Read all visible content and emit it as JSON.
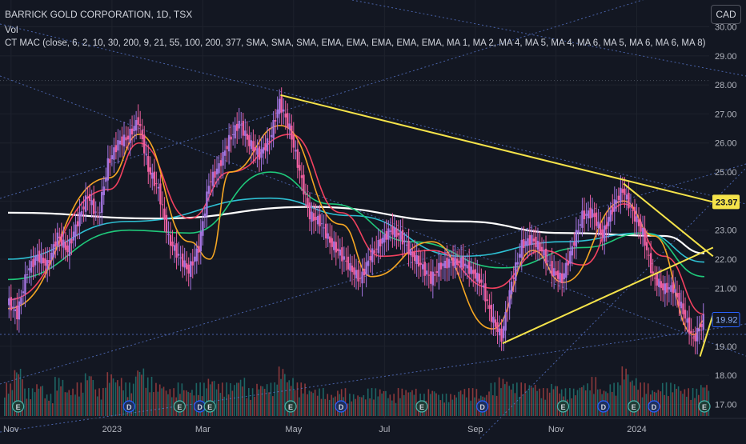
{
  "header": {
    "symbol_line": "BARRICK GOLD CORPORATION, 1D, TSX",
    "vol_label": "Vol",
    "indicator_line": "CT MAC (close, 6, 2, 10, 30, 200, 9, 21, 55, 100, 200, 377, SMA, SMA, SMA, EMA, EMA, EMA, EMA, EMA, MA 1, MA 2, MA 4, MA 5, MA 4, MA 6, MA 5, MA 6, MA 6, MA 8)",
    "currency_button": "CAD"
  },
  "colors": {
    "background": "#131722",
    "grid": "#1e222d",
    "up": "#a374e0",
    "down": "#ef5fa0",
    "vol_up": "#26a69a",
    "vol_down": "#ef5350",
    "trendline": "#f5e34a",
    "dotted": "#5b7bd5",
    "ma_white": "#ffffff",
    "ma_cyan": "#2ec0d3",
    "ma_green": "#1fc87a",
    "ma_red": "#f2415f",
    "ma_orange": "#f5a623"
  },
  "chart_data": {
    "type": "candlestick",
    "symbol": "BARRICK GOLD CORPORATION",
    "interval": "1D",
    "exchange": "TSX",
    "currency": "CAD",
    "y_range": [
      16.6,
      30.4
    ],
    "y_ticks": [
      "30.00",
      "29.00",
      "28.00",
      "27.00",
      "26.00",
      "25.00",
      "24.00",
      "23.00",
      "22.00",
      "21.00",
      "20.00",
      "19.00",
      "18.00",
      "17.00"
    ],
    "x_ticks": [
      "Nov",
      "2023",
      "Mar",
      "May",
      "Jul",
      "Sep",
      "Nov",
      "2024"
    ],
    "price_labels": [
      {
        "text": "23.97",
        "value": 23.97,
        "style": "trendline"
      },
      {
        "text": "19.92",
        "value": 19.92,
        "style": "last"
      }
    ],
    "close_series": [
      {
        "date": "2022-10-25",
        "close": 20.6
      },
      {
        "date": "2022-11-01",
        "close": 20.1
      },
      {
        "date": "2022-11-08",
        "close": 21.6
      },
      {
        "date": "2022-11-15",
        "close": 22.1
      },
      {
        "date": "2022-11-22",
        "close": 21.8
      },
      {
        "date": "2022-11-29",
        "close": 22.8
      },
      {
        "date": "2022-12-06",
        "close": 22.3
      },
      {
        "date": "2022-12-13",
        "close": 23.3
      },
      {
        "date": "2022-12-20",
        "close": 24.2
      },
      {
        "date": "2022-12-27",
        "close": 23.4
      },
      {
        "date": "2023-01-03",
        "close": 25.3
      },
      {
        "date": "2023-01-10",
        "close": 26.0
      },
      {
        "date": "2023-01-17",
        "close": 26.2
      },
      {
        "date": "2023-01-24",
        "close": 26.8
      },
      {
        "date": "2023-01-31",
        "close": 25.1
      },
      {
        "date": "2023-02-07",
        "close": 24.4
      },
      {
        "date": "2023-02-14",
        "close": 22.7
      },
      {
        "date": "2023-02-21",
        "close": 22.1
      },
      {
        "date": "2023-02-28",
        "close": 21.6
      },
      {
        "date": "2023-03-07",
        "close": 22.4
      },
      {
        "date": "2023-03-14",
        "close": 24.6
      },
      {
        "date": "2023-03-21",
        "close": 25.2
      },
      {
        "date": "2023-03-28",
        "close": 26.1
      },
      {
        "date": "2023-04-04",
        "close": 26.7
      },
      {
        "date": "2023-04-11",
        "close": 26.0
      },
      {
        "date": "2023-04-18",
        "close": 25.6
      },
      {
        "date": "2023-04-25",
        "close": 26.1
      },
      {
        "date": "2023-05-02",
        "close": 27.4
      },
      {
        "date": "2023-05-09",
        "close": 26.5
      },
      {
        "date": "2023-05-16",
        "close": 25.0
      },
      {
        "date": "2023-05-23",
        "close": 23.5
      },
      {
        "date": "2023-05-30",
        "close": 23.3
      },
      {
        "date": "2023-06-06",
        "close": 22.6
      },
      {
        "date": "2023-06-13",
        "close": 22.2
      },
      {
        "date": "2023-06-20",
        "close": 21.7
      },
      {
        "date": "2023-06-27",
        "close": 21.3
      },
      {
        "date": "2023-07-04",
        "close": 22.1
      },
      {
        "date": "2023-07-11",
        "close": 22.6
      },
      {
        "date": "2023-07-18",
        "close": 23.0
      },
      {
        "date": "2023-07-25",
        "close": 22.8
      },
      {
        "date": "2023-08-01",
        "close": 22.2
      },
      {
        "date": "2023-08-08",
        "close": 21.8
      },
      {
        "date": "2023-08-15",
        "close": 21.3
      },
      {
        "date": "2023-08-22",
        "close": 21.8
      },
      {
        "date": "2023-08-29",
        "close": 21.9
      },
      {
        "date": "2023-09-05",
        "close": 21.9
      },
      {
        "date": "2023-09-12",
        "close": 21.6
      },
      {
        "date": "2023-09-19",
        "close": 21.2
      },
      {
        "date": "2023-09-26",
        "close": 20.0
      },
      {
        "date": "2023-10-03",
        "close": 19.3
      },
      {
        "date": "2023-10-10",
        "close": 21.2
      },
      {
        "date": "2023-10-17",
        "close": 22.5
      },
      {
        "date": "2023-10-24",
        "close": 22.7
      },
      {
        "date": "2023-10-31",
        "close": 22.3
      },
      {
        "date": "2023-11-07",
        "close": 21.6
      },
      {
        "date": "2023-11-14",
        "close": 21.3
      },
      {
        "date": "2023-11-21",
        "close": 22.4
      },
      {
        "date": "2023-11-28",
        "close": 23.5
      },
      {
        "date": "2023-12-05",
        "close": 23.6
      },
      {
        "date": "2023-12-12",
        "close": 22.8
      },
      {
        "date": "2023-12-19",
        "close": 23.8
      },
      {
        "date": "2023-12-26",
        "close": 24.4
      },
      {
        "date": "2024-01-02",
        "close": 23.6
      },
      {
        "date": "2024-01-09",
        "close": 22.9
      },
      {
        "date": "2024-01-16",
        "close": 21.4
      },
      {
        "date": "2024-01-23",
        "close": 21.0
      },
      {
        "date": "2024-01-30",
        "close": 21.0
      },
      {
        "date": "2024-02-06",
        "close": 20.2
      },
      {
        "date": "2024-02-13",
        "close": 19.2
      },
      {
        "date": "2024-02-20",
        "close": 19.92
      }
    ],
    "volume_relative": [
      0.6,
      0.9,
      0.5,
      0.6,
      0.4,
      0.7,
      0.5,
      0.6,
      0.8,
      0.5,
      0.8,
      0.7,
      0.6,
      0.9,
      0.7,
      0.6,
      0.5,
      0.6,
      0.5,
      0.6,
      0.7,
      0.6,
      0.6,
      0.7,
      0.5,
      0.6,
      0.6,
      0.9,
      0.7,
      0.6,
      0.5,
      0.5,
      0.4,
      0.5,
      0.4,
      0.4,
      0.5,
      0.5,
      0.4,
      0.5,
      0.5,
      0.4,
      0.5,
      0.4,
      0.4,
      0.5,
      0.5,
      0.4,
      0.6,
      0.7,
      0.6,
      0.6,
      0.6,
      0.5,
      0.6,
      0.5,
      0.5,
      0.6,
      0.7,
      0.5,
      0.6,
      0.9,
      0.7,
      0.6,
      0.5,
      0.6,
      0.6,
      0.5,
      0.5,
      0.6
    ],
    "moving_averages": [
      {
        "color": "#ffffff",
        "points": [
          [
            0,
            23.6
          ],
          [
            15,
            23.4
          ],
          [
            30,
            23.8
          ],
          [
            45,
            23.3
          ],
          [
            55,
            22.9
          ],
          [
            65,
            22.8
          ],
          [
            69,
            22.2
          ]
        ]
      },
      {
        "color": "#2ec0d3",
        "points": [
          [
            0,
            22.0
          ],
          [
            12,
            23.3
          ],
          [
            26,
            24.1
          ],
          [
            34,
            23.5
          ],
          [
            45,
            22.1
          ],
          [
            55,
            22.6
          ],
          [
            63,
            22.9
          ],
          [
            69,
            21.9
          ]
        ]
      },
      {
        "color": "#1fc87a",
        "points": [
          [
            0,
            21.3
          ],
          [
            12,
            23.0
          ],
          [
            18,
            22.9
          ],
          [
            26,
            25.0
          ],
          [
            32,
            23.9
          ],
          [
            40,
            22.6
          ],
          [
            49,
            21.7
          ],
          [
            57,
            22.4
          ],
          [
            63,
            22.9
          ],
          [
            69,
            21.4
          ]
        ]
      },
      {
        "color": "#f2415f",
        "points": [
          [
            0,
            20.6
          ],
          [
            10,
            24.4
          ],
          [
            13,
            26.0
          ],
          [
            18,
            23.4
          ],
          [
            22,
            25.0
          ],
          [
            28,
            26.3
          ],
          [
            33,
            23.6
          ],
          [
            37,
            22.1
          ],
          [
            42,
            22.3
          ],
          [
            48,
            21.0
          ],
          [
            53,
            22.3
          ],
          [
            57,
            21.8
          ],
          [
            61,
            23.9
          ],
          [
            65,
            22.1
          ],
          [
            69,
            20.1
          ]
        ]
      },
      {
        "color": "#f5a623",
        "points": [
          [
            0,
            20.3
          ],
          [
            10,
            24.8
          ],
          [
            13,
            26.3
          ],
          [
            18,
            22.6
          ],
          [
            20,
            22.0
          ],
          [
            22,
            25.0
          ],
          [
            27,
            26.6
          ],
          [
            33,
            23.2
          ],
          [
            36,
            21.4
          ],
          [
            42,
            22.6
          ],
          [
            48,
            19.6
          ],
          [
            52,
            22.3
          ],
          [
            55,
            21.2
          ],
          [
            61,
            24.0
          ],
          [
            64,
            22.8
          ],
          [
            68,
            19.4
          ],
          [
            69,
            19.9
          ]
        ]
      }
    ],
    "trendlines": [
      {
        "from": {
          "date": "2023-05-02",
          "price": 27.65
        },
        "to": {
          "date": "2024-02-26",
          "price": 23.97
        }
      },
      {
        "from": {
          "date": "2023-12-26",
          "price": 24.6
        },
        "to": {
          "date": "2024-02-26",
          "price": 22.1
        }
      },
      {
        "from": {
          "date": "2023-10-03",
          "price": 19.1
        },
        "to": {
          "date": "2024-02-26",
          "price": 22.4
        }
      },
      {
        "from": {
          "date": "2024-02-17",
          "price": 18.65
        },
        "to": {
          "date": "2024-02-26",
          "price": 20.1
        }
      }
    ],
    "event_markers": [
      {
        "type": "E",
        "index": 1
      },
      {
        "type": "D",
        "index": 12
      },
      {
        "type": "E",
        "index": 17
      },
      {
        "type": "D",
        "index": 19
      },
      {
        "type": "E",
        "index": 20
      },
      {
        "type": "E",
        "index": 28
      },
      {
        "type": "D",
        "index": 33
      },
      {
        "type": "E",
        "index": 41
      },
      {
        "type": "D",
        "index": 47
      },
      {
        "type": "E",
        "index": 55
      },
      {
        "type": "D",
        "index": 59
      },
      {
        "type": "E",
        "index": 62
      },
      {
        "type": "D",
        "index": 64
      },
      {
        "type": "E",
        "index": 69
      }
    ]
  }
}
